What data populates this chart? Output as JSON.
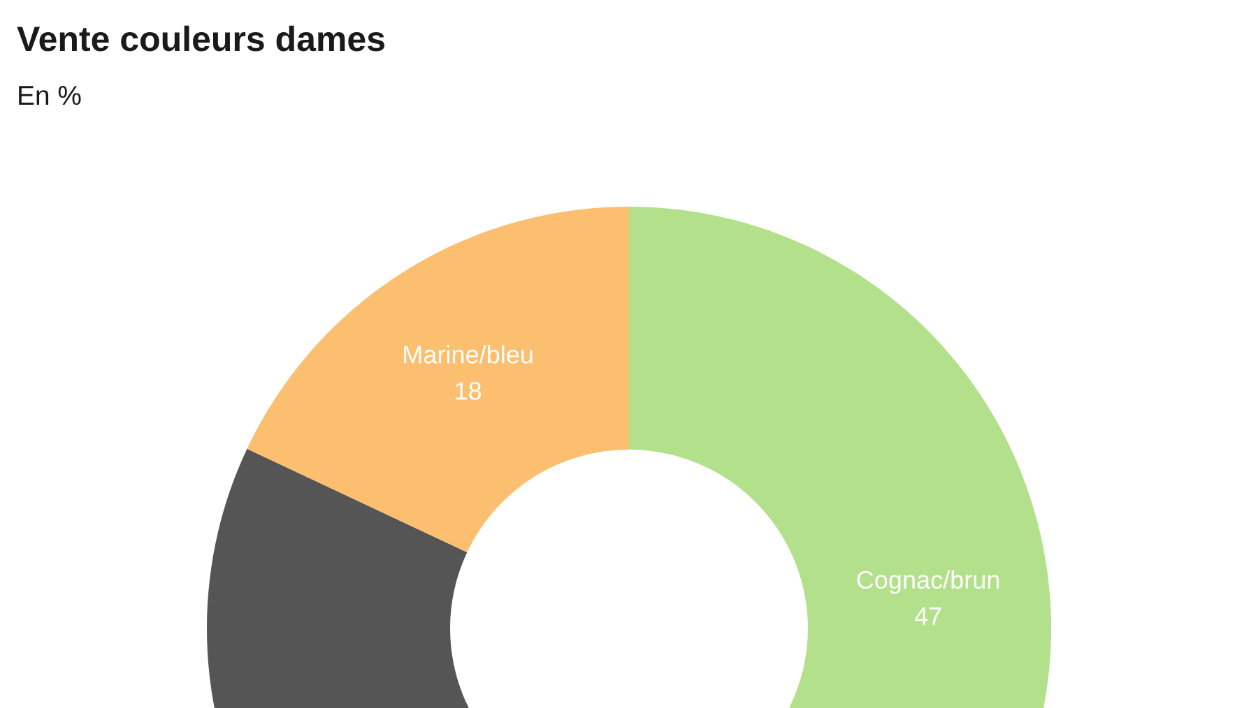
{
  "chart_data": {
    "type": "donut",
    "title": "Vente couleurs dames",
    "subtitle": "En %",
    "categories": [
      "Cognac/brun",
      null,
      "Marine/bleu"
    ],
    "values": [
      47,
      35,
      18
    ],
    "colors": [
      "#b3e08a",
      "#555555",
      "#fcbf70"
    ],
    "value_labels": [
      "47",
      null,
      "18"
    ]
  }
}
